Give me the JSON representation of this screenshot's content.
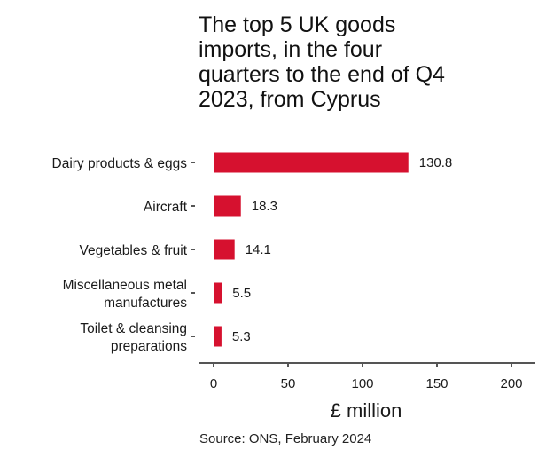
{
  "title_lines": [
    "The top 5 UK goods",
    "imports, in the four",
    "quarters to the end of Q4",
    "2023, from Cyprus"
  ],
  "source": "Source: ONS, February 2024",
  "colors": {
    "bar": "#d6112f",
    "axis": "#555555",
    "text": "#1a1a1a"
  },
  "chart_data": {
    "type": "bar",
    "orientation": "horizontal",
    "title": "The top 5 UK goods imports, in the four quarters to the end of Q4 2023, from Cyprus",
    "categories": [
      [
        "Dairy products & eggs"
      ],
      [
        "Aircraft"
      ],
      [
        "Vegetables & fruit"
      ],
      [
        "Miscellaneous metal",
        "manufactures"
      ],
      [
        "Toilet & cleansing",
        "preparations"
      ]
    ],
    "values": [
      130.8,
      18.3,
      14.1,
      5.5,
      5.3
    ],
    "value_labels": [
      "130.8",
      "18.3",
      "14.1",
      "5.5",
      "5.3"
    ],
    "xlabel": "£ million",
    "xlim": [
      0,
      200
    ],
    "xticks": [
      0,
      50,
      100,
      150,
      200
    ],
    "grid": false
  }
}
